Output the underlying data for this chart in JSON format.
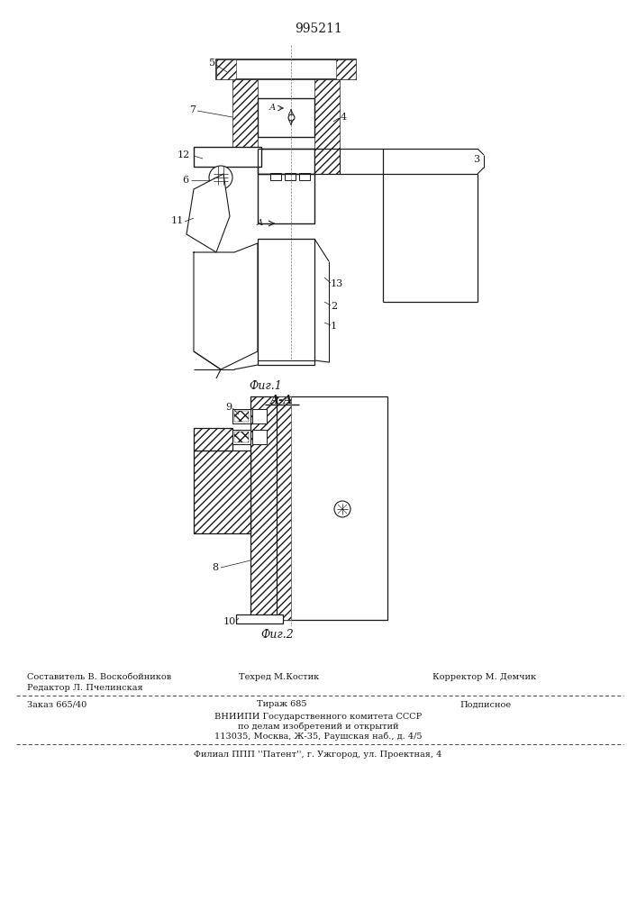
{
  "patent_number": "995211",
  "fig1_caption": "Фиг.1",
  "fig2_caption": "Фиг.2",
  "section_label": "А-А",
  "line_color": "#1a1a1a",
  "footer": {
    "editor": "Редактор Л. Пчелинская",
    "sostavitel": "Составитель В. Воскобойников",
    "tekhred": "Техред М.Костик",
    "korrektor": "Корректор М. Демчик",
    "zakaz": "Заказ 665/40",
    "tirazh": "Тираж 685",
    "podpisnoe": "Подписное",
    "vnipi1": "ВНИИПИ Государственного комитета СССР",
    "vnipi2": "по делам изобретений и открытий",
    "vnipi3": "113035, Москва, Ж-35, Раушская наб., д. 4/5",
    "filial": "Филиал ППП ''Патент'', г. Ужгород, ул. Проектная, 4"
  }
}
